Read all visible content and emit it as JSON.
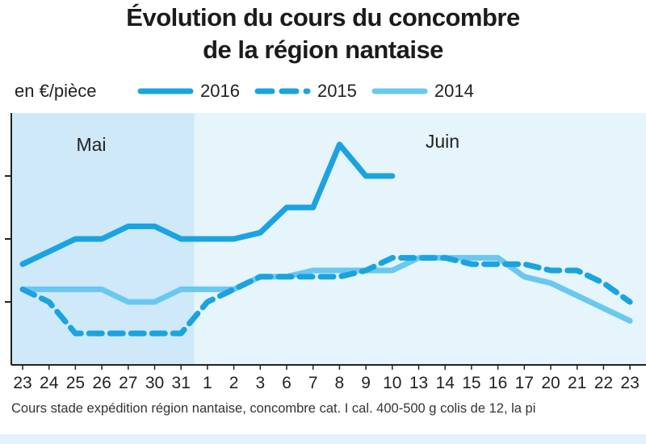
{
  "title_line1": "Évolution du cours du concombre",
  "title_line2": "de la région nantaise",
  "unit_label": "en €/pièce",
  "source_text": "Cours stade expédition région nantaise, concombre cat. I cal. 400-500 g colis de 12, la pi",
  "colors": {
    "series_2016": "#1aa3e0",
    "series_2015": "#1aa3e0",
    "series_2014": "#69c8f0",
    "mai_band": "#cfe9f8",
    "juin_band": "#e6f4fc",
    "axis": "#222222"
  },
  "chart_data": {
    "type": "line",
    "x": [
      "23",
      "24",
      "25",
      "26",
      "27",
      "30",
      "31",
      "1",
      "2",
      "3",
      "6",
      "7",
      "8",
      "9",
      "10",
      "13",
      "14",
      "15",
      "16",
      "17",
      "20",
      "21",
      "22",
      "23"
    ],
    "periods": [
      {
        "label": "Mai",
        "from_index": 0,
        "to_index": 6
      },
      {
        "label": "Juin",
        "from_index": 7,
        "to_index": 23
      }
    ],
    "ylim": [
      0,
      4
    ],
    "yticks": [
      1,
      2,
      3
    ],
    "series": [
      {
        "name": "2016",
        "style": "solid",
        "values": [
          1.6,
          1.8,
          2.0,
          2.0,
          2.2,
          2.2,
          2.0,
          2.0,
          2.0,
          2.1,
          2.5,
          2.5,
          3.5,
          3.0,
          3.0,
          null,
          null,
          null,
          null,
          null,
          null,
          null,
          null,
          null
        ]
      },
      {
        "name": "2015",
        "style": "dashed",
        "values": [
          1.2,
          1.0,
          0.5,
          0.5,
          0.5,
          0.5,
          0.5,
          1.0,
          1.2,
          1.4,
          1.4,
          1.4,
          1.4,
          1.5,
          1.7,
          1.7,
          1.7,
          1.6,
          1.6,
          1.6,
          1.5,
          1.5,
          1.3,
          1.0
        ]
      },
      {
        "name": "2014",
        "style": "solid-light",
        "values": [
          1.2,
          1.2,
          1.2,
          1.2,
          1.0,
          1.0,
          1.2,
          1.2,
          1.2,
          1.4,
          1.4,
          1.5,
          1.5,
          1.5,
          1.5,
          1.7,
          1.7,
          1.7,
          1.7,
          1.4,
          1.3,
          1.1,
          0.9,
          0.7
        ]
      }
    ]
  }
}
